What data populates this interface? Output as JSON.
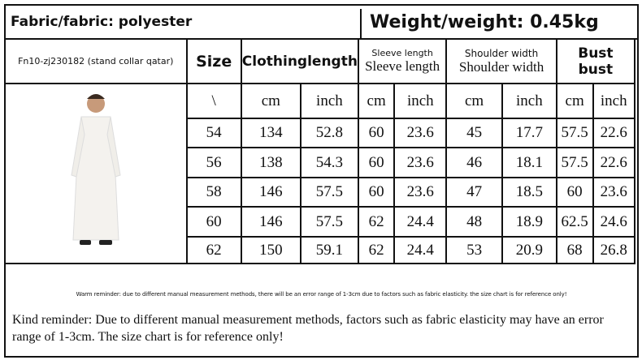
{
  "fabric": "Fabric/fabric: polyester",
  "weight": "Weight/weight: 0.45kg",
  "model": "Fn10-zj230182 (stand collar qatar)",
  "headers": {
    "size": "Size",
    "length": "Clothinglength",
    "sleeve_small": "Sleeve length",
    "sleeve": "Sleeve length",
    "shoulder_small": "Shoulder width",
    "shoulder": "Shoulder width",
    "bust": "Bust",
    "bust2": "bust"
  },
  "units": [
    "\\",
    "cm",
    "inch",
    "cm",
    "inch",
    "cm",
    "inch",
    "cm",
    "inch"
  ],
  "rows": [
    [
      "54",
      "134",
      "52.8",
      "60",
      "23.6",
      "45",
      "17.7",
      "57.5",
      "22.6"
    ],
    [
      "56",
      "138",
      "54.3",
      "60",
      "23.6",
      "46",
      "18.1",
      "57.5",
      "22.6"
    ],
    [
      "58",
      "146",
      "57.5",
      "60",
      "23.6",
      "47",
      "18.5",
      "60",
      "23.6"
    ],
    [
      "60",
      "146",
      "57.5",
      "62",
      "24.4",
      "48",
      "18.9",
      "62.5",
      "24.6"
    ],
    [
      "62",
      "150",
      "59.1",
      "62",
      "24.4",
      "53",
      "20.9",
      "68",
      "26.8"
    ]
  ],
  "warm_reminder": "Warm reminder: due to different manual measurement methods, there will be an error range of 1-3cm due to factors such as fabric elasticity. the size chart is for reference only!",
  "kind_reminder": "Kind reminder: Due to different manual measurement methods, factors such as fabric elasticity may have an error range of 1-3cm. The size chart is for reference only!"
}
